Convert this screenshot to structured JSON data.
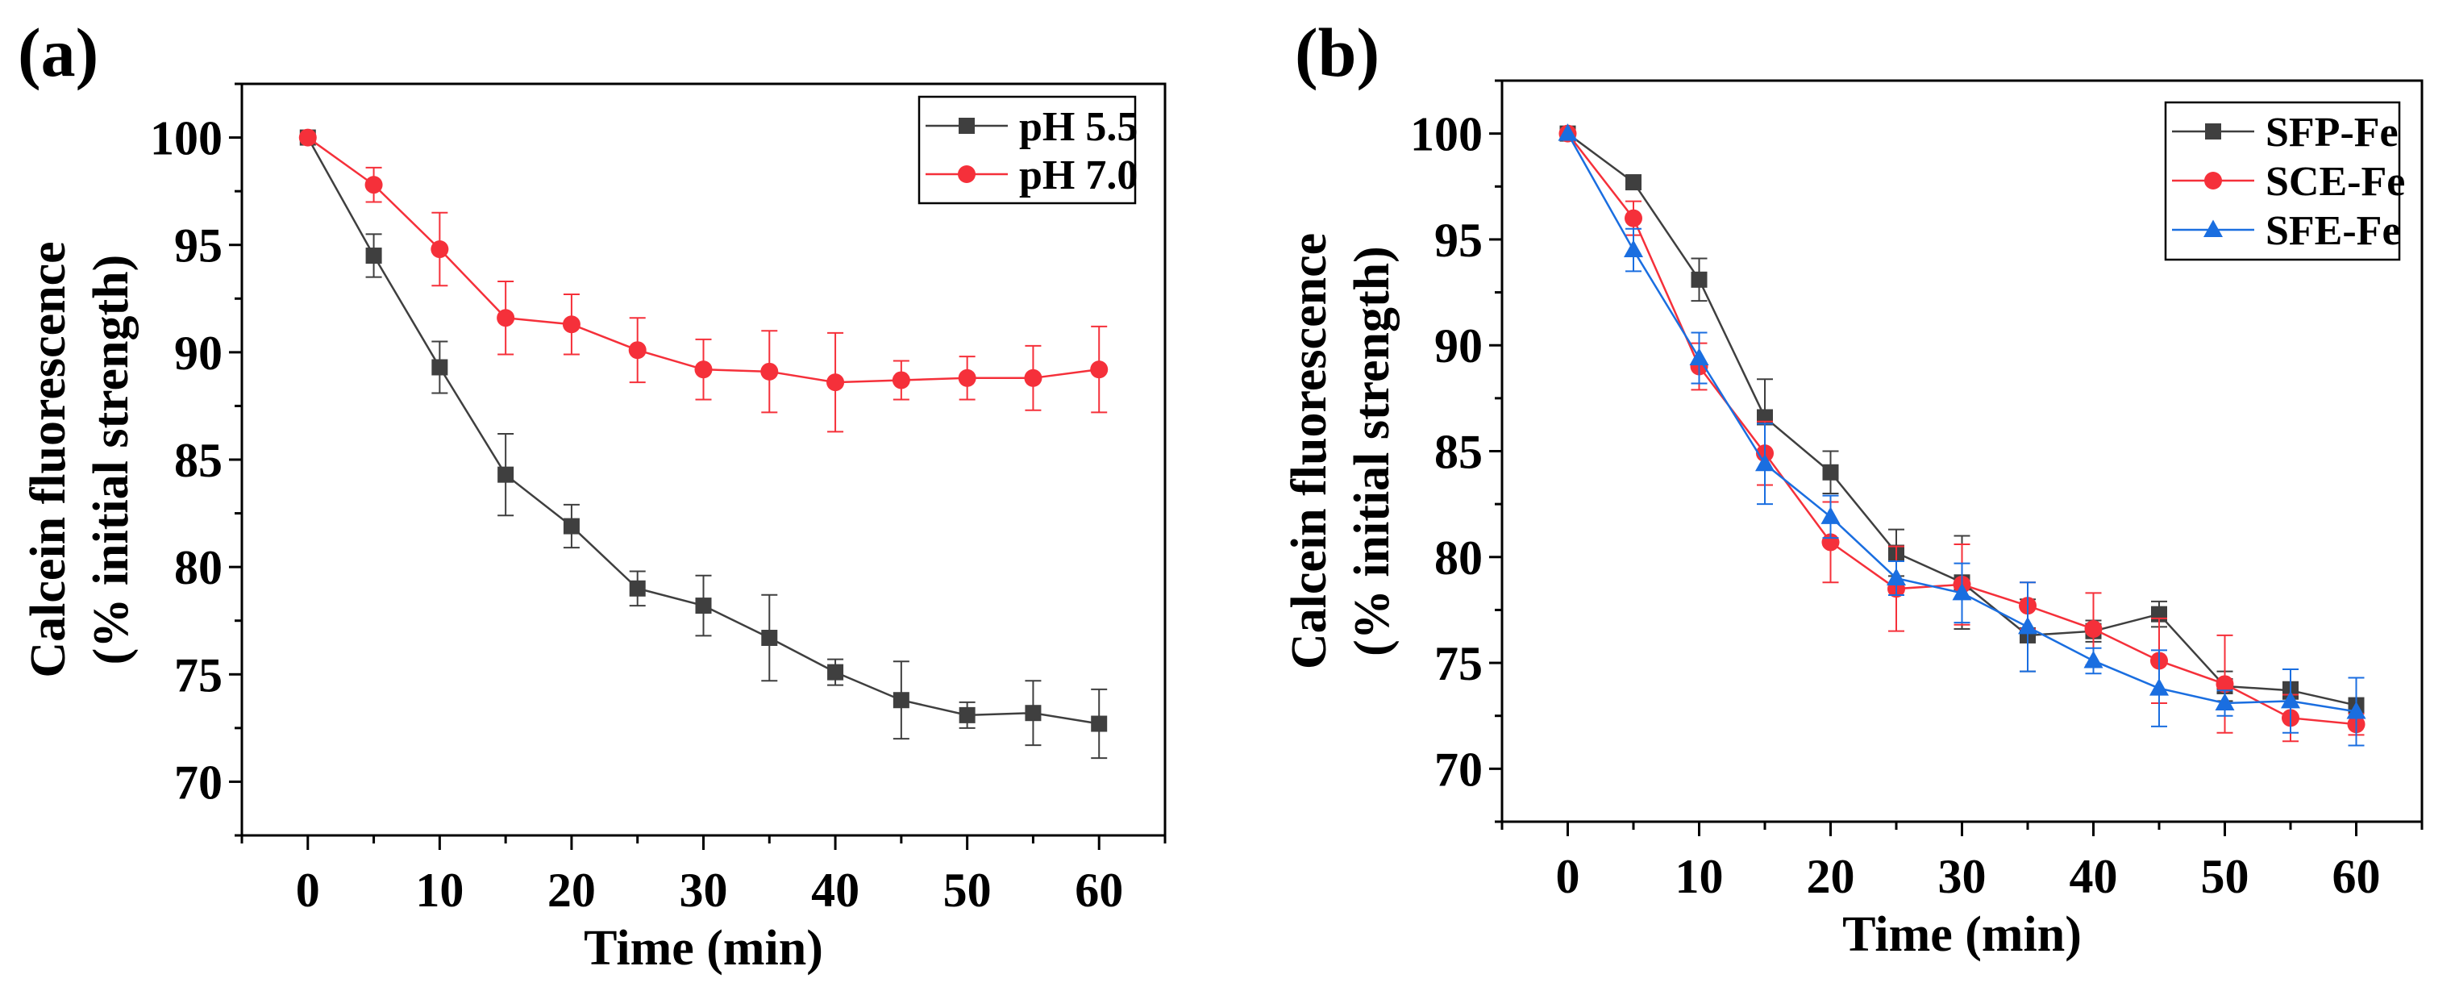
{
  "chart_data": [
    {
      "type": "line",
      "panel_label": "(a)",
      "xlabel": "Time (min)",
      "ylabel": [
        "Calcein fluorescence",
        "(% initial strength)"
      ],
      "xlim": [
        -5,
        65
      ],
      "ylim": [
        67.5,
        102.5
      ],
      "xticks": [
        0,
        10,
        20,
        30,
        40,
        50,
        60
      ],
      "yticks": [
        70,
        75,
        80,
        85,
        90,
        95,
        100
      ],
      "grid": false,
      "legend": "top-right",
      "x": [
        0,
        5,
        10,
        15,
        20,
        25,
        30,
        35,
        40,
        45,
        50,
        55,
        60
      ],
      "series": [
        {
          "name": "pH 5.5",
          "color": "#3f3f3f",
          "marker": "square",
          "values": [
            100,
            94.5,
            89.3,
            84.3,
            81.9,
            79.0,
            78.2,
            76.7,
            75.1,
            73.8,
            73.1,
            73.2,
            72.7
          ],
          "errors": [
            0,
            1.0,
            1.2,
            1.9,
            1.0,
            0.8,
            1.4,
            2.0,
            0.6,
            1.8,
            0.6,
            1.5,
            1.6
          ]
        },
        {
          "name": "pH 7.0",
          "color": "#f5303a",
          "marker": "circle",
          "values": [
            100,
            97.8,
            94.8,
            91.6,
            91.3,
            90.1,
            89.2,
            89.1,
            88.6,
            88.7,
            88.8,
            88.8,
            89.2
          ],
          "errors": [
            0,
            0.8,
            1.7,
            1.7,
            1.4,
            1.5,
            1.4,
            1.9,
            2.3,
            0.9,
            1.0,
            1.5,
            2.0
          ]
        }
      ]
    },
    {
      "type": "line",
      "panel_label": "(b)",
      "xlabel": "Time (min)",
      "ylabel": [
        "Calcein fluorescence",
        "(% initial strength)"
      ],
      "xlim": [
        -5,
        65
      ],
      "ylim": [
        67.5,
        102.5
      ],
      "xticks": [
        0,
        10,
        20,
        30,
        40,
        50,
        60
      ],
      "yticks": [
        70,
        75,
        80,
        85,
        90,
        95,
        100
      ],
      "grid": false,
      "legend": "top-right",
      "x": [
        0,
        5,
        10,
        15,
        20,
        25,
        30,
        35,
        40,
        45,
        50,
        55,
        60
      ],
      "series": [
        {
          "name": "SFP-Fe",
          "color": "#3f3f3f",
          "marker": "square",
          "values": [
            100,
            97.7,
            93.1,
            86.6,
            84.0,
            80.2,
            78.8,
            76.3,
            76.5,
            77.3,
            73.9,
            73.7,
            73.0
          ],
          "errors": [
            0,
            0.3,
            1.0,
            1.8,
            1.0,
            1.1,
            2.2,
            1.7,
            0.5,
            0.6,
            0.7,
            0.4,
            0.3
          ]
        },
        {
          "name": "SCE-Fe",
          "color": "#f5303a",
          "marker": "circle",
          "values": [
            100,
            96.0,
            89.0,
            84.9,
            80.7,
            78.5,
            78.7,
            77.7,
            76.6,
            75.1,
            74.0,
            72.4,
            72.1
          ],
          "errors": [
            0,
            0.8,
            1.1,
            1.5,
            1.9,
            2.0,
            1.9,
            1.1,
            1.7,
            2.0,
            2.3,
            1.1,
            0.5
          ]
        },
        {
          "name": "SFE-Fe",
          "color": "#1a6ee0",
          "marker": "triangle",
          "values": [
            100,
            94.5,
            89.4,
            84.4,
            81.9,
            79.0,
            78.3,
            76.7,
            75.1,
            73.8,
            73.1,
            73.2,
            72.7
          ],
          "errors": [
            0,
            1.0,
            1.2,
            1.9,
            1.0,
            0.8,
            1.4,
            2.1,
            0.6,
            1.8,
            0.6,
            1.5,
            1.6
          ]
        }
      ]
    }
  ]
}
